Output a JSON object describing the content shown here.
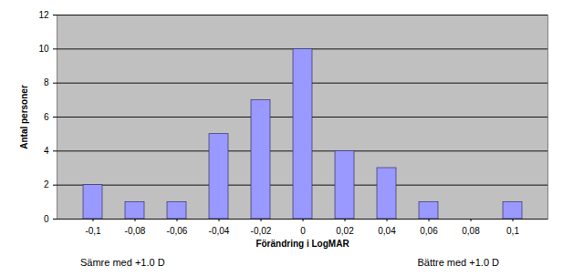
{
  "chart_data": {
    "type": "bar",
    "categories": [
      "-0,1",
      "-0,08",
      "-0,06",
      "-0,04",
      "-0,02",
      "0",
      "0,02",
      "0,04",
      "0,06",
      "0,08",
      "0,1"
    ],
    "values": [
      2,
      1,
      1,
      5,
      7,
      10,
      4,
      3,
      1,
      0,
      1
    ],
    "color": "#9999ff",
    "x_label": "Förändring i LogMAR",
    "y_label": "Antal personer",
    "ylim": [
      0,
      12
    ],
    "yticks": [
      0,
      2,
      4,
      6,
      8,
      10,
      12
    ],
    "grid": true,
    "annotations": [
      "Sämre med +1.0 D",
      "Bättre med +1.0 D"
    ]
  }
}
